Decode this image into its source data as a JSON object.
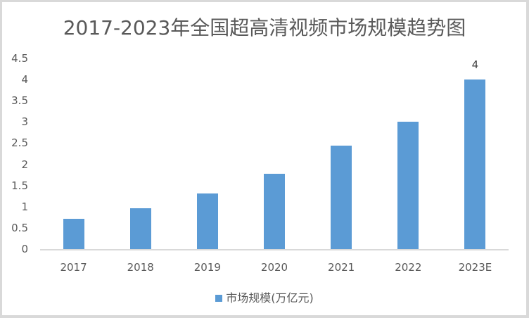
{
  "chart_data": {
    "type": "bar",
    "title": "2017-2023年全国超高清视频市场规模趋势图",
    "xlabel": "",
    "ylabel": "",
    "categories": [
      "2017",
      "2018",
      "2019",
      "2020",
      "2021",
      "2022",
      "2023E"
    ],
    "series": [
      {
        "name": "市场规模(万亿元)",
        "values": [
          0.71,
          0.96,
          1.31,
          1.78,
          2.44,
          3.0,
          4.0
        ],
        "color": "#5b9bd5"
      }
    ],
    "ylim": [
      0,
      4.5
    ],
    "yticks": [
      "0",
      "0.5",
      "1",
      "1.5",
      "2",
      "2.5",
      "3",
      "3.5",
      "4",
      "4.5"
    ],
    "data_labels": [
      {
        "category": "2023E",
        "text": "4"
      }
    ],
    "grid": false,
    "legend_position": "bottom"
  },
  "legend": {
    "label": "市场规模(万亿元)"
  }
}
